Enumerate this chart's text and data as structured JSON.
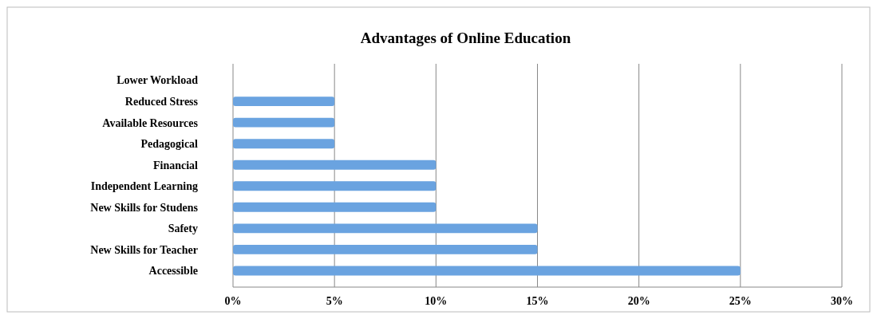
{
  "chart_data": {
    "type": "bar",
    "title": "Advantages of Online Education",
    "orientation": "horizontal",
    "categories": [
      "Lower Workload",
      "Reduced Stress",
      "Available Resources",
      "Pedagogical",
      "Financial",
      "Independent Learning",
      "New Skills for Studens",
      "Safety",
      "New Skills for Teacher",
      "Accessible"
    ],
    "values": [
      0,
      5,
      5,
      5,
      10,
      10,
      10,
      15,
      15,
      25
    ],
    "color": "#6aa3e0",
    "xlim": [
      0,
      30
    ],
    "xticks": [
      {
        "value": 0,
        "label": "0%"
      },
      {
        "value": 5,
        "label": "5%"
      },
      {
        "value": 10,
        "label": "10%"
      },
      {
        "value": 15,
        "label": "15%"
      },
      {
        "value": 20,
        "label": "20%"
      },
      {
        "value": 25,
        "label": "25%"
      },
      {
        "value": 30,
        "label": "30%"
      }
    ],
    "grid": "x"
  }
}
